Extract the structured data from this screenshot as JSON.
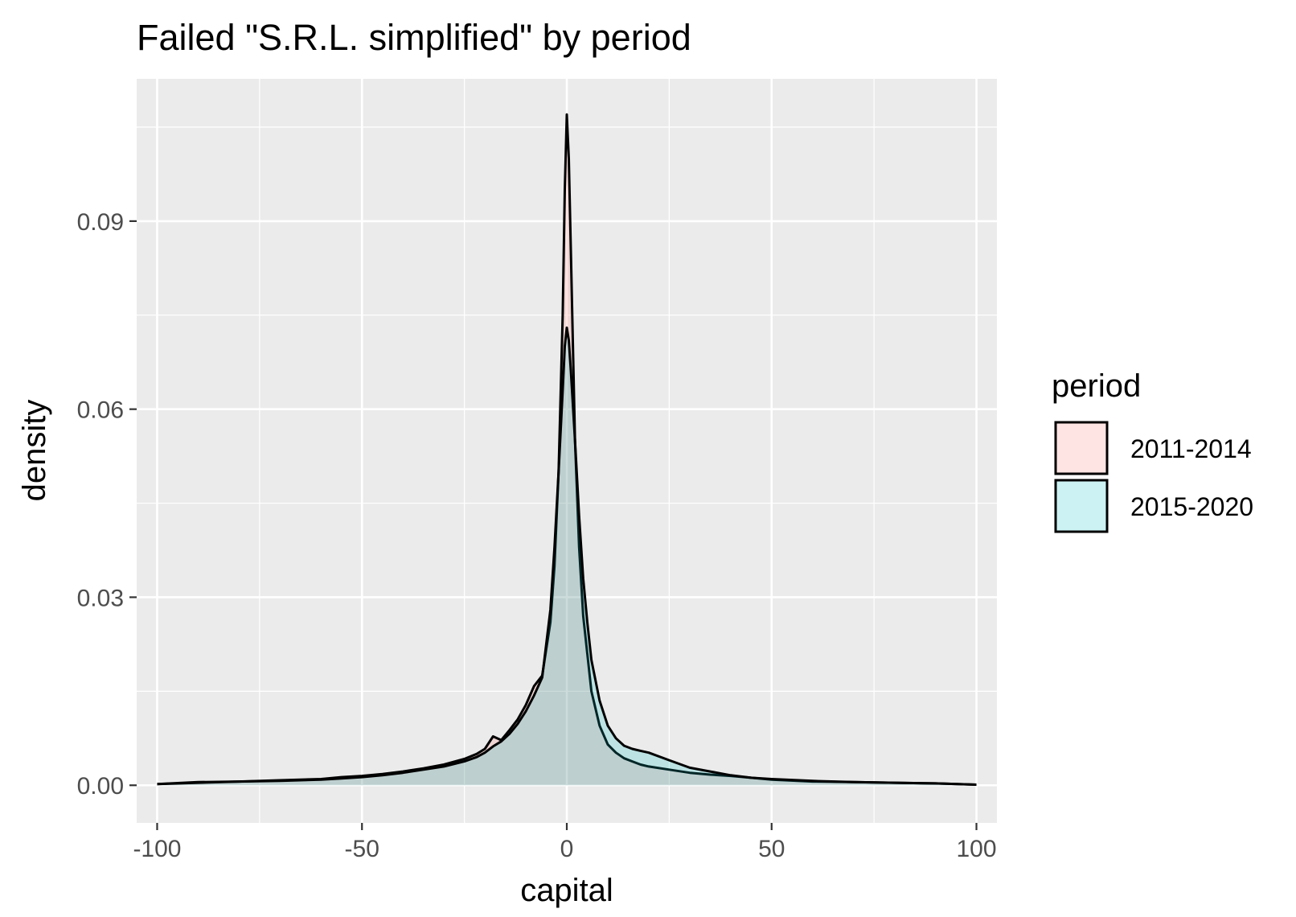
{
  "chart_data": {
    "type": "area",
    "title": "Failed \"S.R.L. simplified\" by period",
    "xlabel": "capital",
    "ylabel": "density",
    "xlim": [
      -105,
      105
    ],
    "ylim": [
      -0.006,
      0.1127
    ],
    "x_ticks": [
      -100,
      -50,
      0,
      50,
      100
    ],
    "x_tick_labels": [
      "-100",
      "-50",
      "0",
      "50",
      "100"
    ],
    "y_ticks": [
      0.0,
      0.03,
      0.06,
      0.09
    ],
    "y_tick_labels": [
      "0.00",
      "0.03",
      "0.06",
      "0.09"
    ],
    "grid": true,
    "legend": {
      "title": "period",
      "position": "right"
    },
    "series": [
      {
        "name": "2011-2014",
        "fill": "#F8766D",
        "x": [
          -100,
          -90,
          -80,
          -70,
          -60,
          -55,
          -50,
          -45,
          -40,
          -35,
          -30,
          -25,
          -22,
          -20,
          -18,
          -16,
          -14,
          -12,
          -10,
          -8,
          -6,
          -4,
          -3,
          -2,
          -1,
          -0.5,
          0,
          0.5,
          1,
          2,
          3,
          4,
          5,
          6,
          8,
          10,
          12,
          14,
          16,
          18,
          20,
          25,
          30,
          35,
          40,
          45,
          50,
          60,
          70,
          80,
          90,
          100
        ],
        "y": [
          0.0002,
          0.0005,
          0.0006,
          0.0008,
          0.001,
          0.0013,
          0.0015,
          0.0018,
          0.0022,
          0.0027,
          0.0033,
          0.0042,
          0.005,
          0.0058,
          0.0078,
          0.0072,
          0.0088,
          0.0105,
          0.0128,
          0.0158,
          0.0175,
          0.026,
          0.035,
          0.05,
          0.075,
          0.095,
          0.107,
          0.1,
          0.085,
          0.055,
          0.038,
          0.027,
          0.021,
          0.015,
          0.0095,
          0.0065,
          0.0052,
          0.0043,
          0.0038,
          0.0033,
          0.003,
          0.0025,
          0.002,
          0.0017,
          0.0015,
          0.0012,
          0.0009,
          0.0006,
          0.0005,
          0.0004,
          0.0003,
          0.0001
        ]
      },
      {
        "name": "2015-2020",
        "fill": "#00BFC4",
        "x": [
          -100,
          -90,
          -80,
          -70,
          -60,
          -55,
          -50,
          -45,
          -40,
          -35,
          -30,
          -25,
          -22,
          -20,
          -18,
          -16,
          -14,
          -12,
          -10,
          -8,
          -6,
          -4,
          -3,
          -2,
          -1,
          -0.5,
          0,
          0.5,
          1,
          2,
          3,
          4,
          5,
          6,
          8,
          10,
          12,
          14,
          16,
          18,
          20,
          25,
          30,
          35,
          40,
          45,
          50,
          60,
          70,
          80,
          90,
          100
        ],
        "y": [
          0.0002,
          0.0004,
          0.0006,
          0.0007,
          0.0009,
          0.0011,
          0.0013,
          0.0016,
          0.002,
          0.0025,
          0.003,
          0.0038,
          0.0045,
          0.0052,
          0.0062,
          0.007,
          0.0082,
          0.0098,
          0.0118,
          0.0143,
          0.0172,
          0.028,
          0.038,
          0.05,
          0.063,
          0.07,
          0.073,
          0.071,
          0.066,
          0.055,
          0.043,
          0.033,
          0.026,
          0.02,
          0.0135,
          0.0095,
          0.0075,
          0.0063,
          0.0058,
          0.0055,
          0.0052,
          0.004,
          0.0028,
          0.0022,
          0.0016,
          0.0012,
          0.001,
          0.0007,
          0.0005,
          0.0004,
          0.0003,
          0.0001
        ]
      }
    ]
  }
}
